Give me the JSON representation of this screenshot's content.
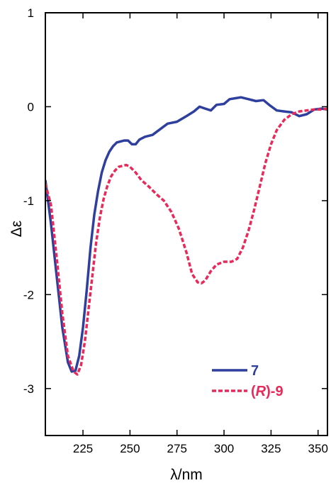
{
  "chart_data": {
    "type": "line",
    "xlabel": "λ/nm",
    "ylabel": "Δε",
    "xlim": [
      205,
      355
    ],
    "ylim": [
      -3.5,
      1
    ],
    "xticks": [
      225,
      250,
      275,
      300,
      325,
      350
    ],
    "yticks": [
      1,
      0,
      -1,
      -2,
      -3
    ],
    "grid": false,
    "legend_position": "bottom-right",
    "series": [
      {
        "name": "7",
        "color": "#2e3f9e",
        "dash": "solid",
        "legend_main": "7",
        "legend_italic": "",
        "legend_suffix": "",
        "x": [
          205,
          208,
          211,
          214,
          217,
          219,
          221,
          223,
          225,
          227,
          229,
          231,
          233,
          235,
          237,
          239,
          241,
          243,
          245,
          247,
          249,
          251,
          253,
          255,
          258,
          262,
          266,
          270,
          275,
          280,
          284,
          287,
          290,
          293,
          296,
          300,
          303,
          306,
          309,
          313,
          317,
          321,
          324,
          328,
          332,
          336,
          340,
          344,
          348,
          352,
          355
        ],
        "y": [
          -0.78,
          -1.25,
          -1.8,
          -2.35,
          -2.72,
          -2.82,
          -2.81,
          -2.65,
          -2.35,
          -1.95,
          -1.5,
          -1.15,
          -0.9,
          -0.7,
          -0.57,
          -0.48,
          -0.42,
          -0.38,
          -0.37,
          -0.36,
          -0.36,
          -0.4,
          -0.4,
          -0.35,
          -0.32,
          -0.3,
          -0.24,
          -0.18,
          -0.16,
          -0.1,
          -0.05,
          0.0,
          -0.02,
          -0.04,
          0.02,
          0.03,
          0.08,
          0.09,
          0.1,
          0.08,
          0.06,
          0.07,
          0.02,
          -0.04,
          -0.05,
          -0.06,
          -0.1,
          -0.08,
          -0.03,
          -0.02,
          -0.03
        ]
      },
      {
        "name": "(R)-9",
        "color": "#e8295a",
        "dash": "dashed",
        "legend_main": "",
        "legend_prefix": "(",
        "legend_italic": "R",
        "legend_suffix": ")-9",
        "x": [
          205,
          208,
          211,
          214,
          217,
          220,
          222,
          224,
          226,
          228,
          230,
          232,
          234,
          236,
          238,
          240,
          242,
          244,
          246,
          248,
          250,
          253,
          256,
          260,
          264,
          268,
          272,
          276,
          280,
          283,
          286,
          288,
          290,
          293,
          296,
          300,
          304,
          307,
          310,
          313,
          316,
          319,
          322,
          325,
          328,
          332,
          336,
          340,
          344,
          348,
          352,
          355
        ],
        "y": [
          -0.82,
          -1.05,
          -1.6,
          -2.2,
          -2.65,
          -2.82,
          -2.85,
          -2.75,
          -2.5,
          -2.15,
          -1.8,
          -1.45,
          -1.18,
          -0.98,
          -0.84,
          -0.74,
          -0.68,
          -0.64,
          -0.63,
          -0.62,
          -0.64,
          -0.7,
          -0.78,
          -0.85,
          -0.93,
          -1.0,
          -1.12,
          -1.3,
          -1.55,
          -1.78,
          -1.87,
          -1.88,
          -1.85,
          -1.75,
          -1.68,
          -1.65,
          -1.65,
          -1.62,
          -1.5,
          -1.32,
          -1.1,
          -0.85,
          -0.6,
          -0.4,
          -0.25,
          -0.14,
          -0.08,
          -0.05,
          -0.04,
          -0.03,
          -0.03,
          -0.02
        ]
      }
    ]
  }
}
